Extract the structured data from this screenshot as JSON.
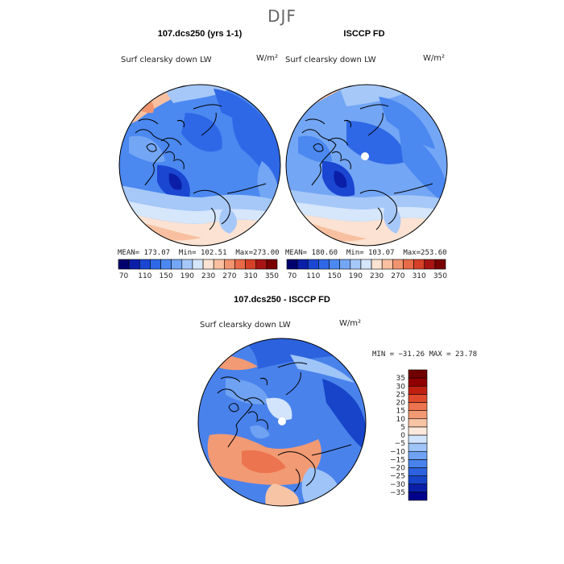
{
  "figure": {
    "title": "DJF",
    "panel1_title": "107.dcs250 (yrs 1-1)",
    "panel2_title": "ISCCP FD",
    "diff_title": "107.dcs250 - ISCCP FD"
  },
  "colors": {
    "abs_scale": [
      "#00006e",
      "#0a1ea8",
      "#1a46d2",
      "#2f68e6",
      "#4b88f0",
      "#73a6f4",
      "#a6c8f8",
      "#d6e6fb",
      "#fbe2d2",
      "#f8c0a0",
      "#f19470",
      "#e86a48",
      "#d64028",
      "#a81414",
      "#780000"
    ],
    "diff_scale": [
      "#00008c",
      "#0a1ea8",
      "#1744c8",
      "#2d62de",
      "#4a82ec",
      "#6fa2f2",
      "#9ec4f8",
      "#d2e4fb",
      "#fde9db",
      "#f8c4a6",
      "#f29a74",
      "#ec744e",
      "#e04a2c",
      "#c02010",
      "#900000",
      "#700000"
    ]
  },
  "chart_data": [
    {
      "type": "heatmap",
      "projection": "north-polar-stereographic",
      "title": "107.dcs250 (yrs 1-1)",
      "variable": "Surf clearsky down LW",
      "units": "W/m²",
      "mean": "173.07",
      "min": "102.51",
      "max": "273.00",
      "mean_label": "MEAN=",
      "min_label": "Min=",
      "max_label": "Max=",
      "colorbar_ticks": [
        "70",
        "110",
        "150",
        "190",
        "230",
        "270",
        "310",
        "350"
      ],
      "levels": [
        70,
        90,
        110,
        130,
        150,
        170,
        190,
        210,
        230,
        250,
        270,
        290,
        310,
        330,
        350
      ]
    },
    {
      "type": "heatmap",
      "projection": "north-polar-stereographic",
      "title": "ISCCP FD",
      "variable": "Surf clearsky down LW",
      "units": "W/m²",
      "mean": "180.60",
      "min": "103.07",
      "max": "253.60",
      "mean_label": "MEAN=",
      "min_label": "Min=",
      "max_label": "Max=",
      "colorbar_ticks": [
        "70",
        "110",
        "150",
        "190",
        "230",
        "270",
        "310",
        "350"
      ],
      "levels": [
        70,
        90,
        110,
        130,
        150,
        170,
        190,
        210,
        230,
        250,
        270,
        290,
        310,
        330,
        350
      ]
    },
    {
      "type": "heatmap",
      "projection": "north-polar-stereographic",
      "title": "107.dcs250 - ISCCP FD",
      "variable": "Surf clearsky down LW",
      "units": "W/m²",
      "min": "-31.26",
      "max": "23.78",
      "stats_text": "MIN = −31.26 MAX =  23.78",
      "colorbar_ticks": [
        "35",
        "30",
        "25",
        "20",
        "15",
        "10",
        "5",
        "0",
        "−5",
        "−10",
        "−15",
        "−20",
        "−25",
        "−30",
        "−35"
      ],
      "levels": [
        -35,
        -30,
        -25,
        -20,
        -15,
        -10,
        -5,
        0,
        5,
        10,
        15,
        20,
        25,
        30,
        35
      ]
    }
  ]
}
